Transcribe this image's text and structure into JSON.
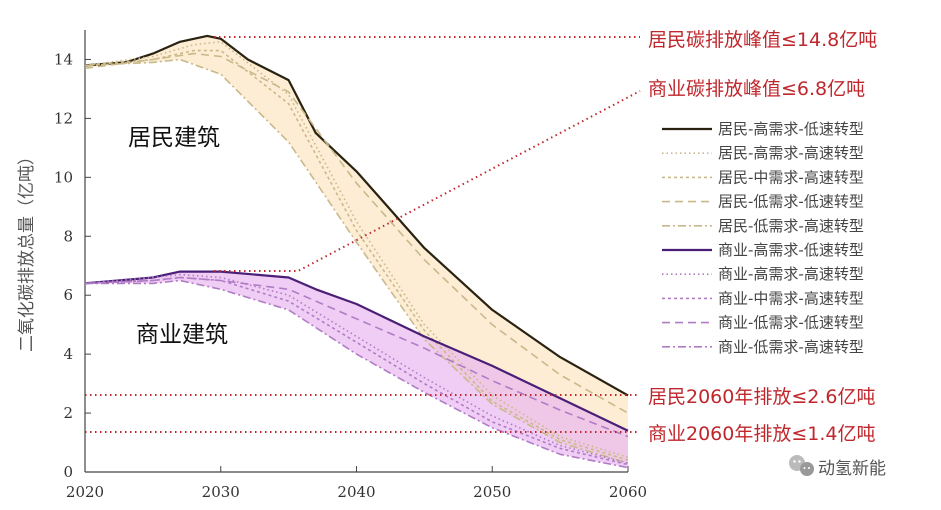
{
  "chart_data": {
    "type": "line",
    "ylabel": "二氧化碳排放总量（亿吨）",
    "xlim": [
      2020,
      2060
    ],
    "ylim": [
      0,
      15
    ],
    "x_ticks": [
      "2020",
      "2030",
      "2040",
      "2050",
      "2060"
    ],
    "y_ticks": [
      "0",
      "2",
      "4",
      "6",
      "8",
      "10",
      "12",
      "14"
    ],
    "region_labels": {
      "residential": "居民建筑",
      "commercial": "商业建筑"
    },
    "annotations": {
      "res_peak": "居民碳排放峰值≤14.8亿吨",
      "com_peak": "商业碳排放峰值≤6.8亿吨",
      "res_2060": "居民2060年排放≤2.6亿吨",
      "com_2060": "商业2060年排放≤1.4亿吨"
    },
    "colors": {
      "residential": "#2a2210",
      "residential_dash": "#c9b98a",
      "residential_fill": "#fbe7c6",
      "commercial": "#4a1f78",
      "commercial_dash": "#b07cc6",
      "commercial_fill": "#eab8f0",
      "annotation": "#c0272d"
    },
    "series": [
      {
        "name": "居民-高需求-低速转型",
        "style": "solid",
        "group": "residential",
        "x": [
          2020,
          2023,
          2025,
          2027,
          2029,
          2030,
          2032,
          2035,
          2037,
          2040,
          2045,
          2050,
          2055,
          2060
        ],
        "y": [
          13.8,
          13.9,
          14.2,
          14.6,
          14.8,
          14.7,
          14.0,
          13.3,
          11.5,
          10.2,
          7.6,
          5.5,
          3.9,
          2.6
        ]
      },
      {
        "name": "居民-高需求-高速转型",
        "style": "dot",
        "group": "residential",
        "x": [
          2020,
          2025,
          2028,
          2030,
          2035,
          2040,
          2045,
          2050,
          2055,
          2060
        ],
        "y": [
          13.8,
          14.1,
          14.5,
          14.6,
          12.8,
          8.5,
          5.0,
          2.6,
          1.2,
          0.5
        ]
      },
      {
        "name": "居民-中需求-高速转型",
        "style": "shortdash",
        "group": "residential",
        "x": [
          2020,
          2025,
          2028,
          2030,
          2035,
          2040,
          2045,
          2050,
          2055,
          2060
        ],
        "y": [
          13.8,
          14.0,
          14.3,
          14.3,
          12.5,
          8.2,
          4.8,
          2.4,
          1.1,
          0.4
        ]
      },
      {
        "name": "居民-低需求-低速转型",
        "style": "dash",
        "group": "residential",
        "x": [
          2020,
          2025,
          2028,
          2030,
          2035,
          2040,
          2045,
          2050,
          2055,
          2060
        ],
        "y": [
          13.7,
          14.0,
          14.2,
          14.1,
          12.9,
          9.8,
          7.2,
          5.0,
          3.3,
          2.0
        ]
      },
      {
        "name": "居民-低需求-高速转型",
        "style": "dashdot",
        "group": "residential",
        "x": [
          2020,
          2025,
          2027,
          2030,
          2035,
          2040,
          2045,
          2050,
          2055,
          2060
        ],
        "y": [
          13.8,
          13.9,
          14.0,
          13.5,
          11.2,
          7.8,
          4.5,
          2.3,
          1.0,
          0.3
        ]
      },
      {
        "name": "商业-高需求-低速转型",
        "style": "solid",
        "group": "commercial",
        "x": [
          2020,
          2025,
          2027,
          2030,
          2035,
          2037,
          2040,
          2045,
          2050,
          2055,
          2060
        ],
        "y": [
          6.4,
          6.6,
          6.8,
          6.8,
          6.6,
          6.2,
          5.7,
          4.6,
          3.6,
          2.5,
          1.4
        ]
      },
      {
        "name": "商业-高需求-高速转型",
        "style": "dot",
        "group": "commercial",
        "x": [
          2020,
          2025,
          2027,
          2030,
          2035,
          2040,
          2045,
          2050,
          2055,
          2060
        ],
        "y": [
          6.4,
          6.6,
          6.7,
          6.6,
          6.0,
          4.6,
          3.2,
          1.9,
          0.9,
          0.3
        ]
      },
      {
        "name": "商业-中需求-高速转型",
        "style": "shortdash",
        "group": "commercial",
        "x": [
          2020,
          2025,
          2027,
          2030,
          2035,
          2040,
          2045,
          2050,
          2055,
          2060
        ],
        "y": [
          6.4,
          6.5,
          6.6,
          6.5,
          5.8,
          4.4,
          3.0,
          1.7,
          0.8,
          0.25
        ]
      },
      {
        "name": "商业-低需求-低速转型",
        "style": "dash",
        "group": "commercial",
        "x": [
          2020,
          2025,
          2027,
          2030,
          2035,
          2040,
          2045,
          2050,
          2055,
          2060
        ],
        "y": [
          6.4,
          6.5,
          6.6,
          6.5,
          6.2,
          5.2,
          4.2,
          3.1,
          2.1,
          1.2
        ]
      },
      {
        "name": "商业-低需求-高速转型",
        "style": "dashdot",
        "group": "commercial",
        "x": [
          2020,
          2025,
          2027,
          2030,
          2035,
          2040,
          2045,
          2050,
          2055,
          2060
        ],
        "y": [
          6.4,
          6.4,
          6.5,
          6.2,
          5.5,
          4.0,
          2.7,
          1.5,
          0.6,
          0.15
        ]
      }
    ],
    "grid": false,
    "legend_position": "right"
  },
  "watermark": {
    "text": "动氢新能",
    "icon": "wechat-icon"
  }
}
